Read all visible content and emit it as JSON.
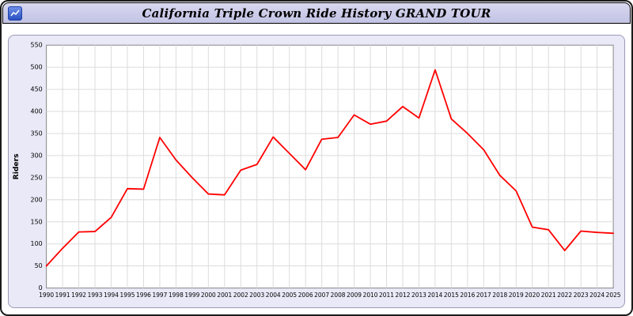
{
  "window": {
    "title": "California Triple Crown Ride History GRAND TOUR",
    "icon": "chart-icon"
  },
  "colors": {
    "titlebar_bg": "#ccccec",
    "panel_bg": "#e9e9f7",
    "plot_bg": "#ffffff",
    "grid": "#dcdcdc",
    "axis_border": "#888888",
    "line": "#ff0000",
    "text": "#000000"
  },
  "chart_data": {
    "type": "line",
    "title": "California Triple Crown Ride History GRAND TOUR",
    "xlabel": "",
    "ylabel": "Riders",
    "ylim": [
      0,
      550
    ],
    "ytick_step": 50,
    "grid": true,
    "legend": "none",
    "line_color": "#ff0000",
    "years": [
      1990,
      1991,
      1992,
      1993,
      1994,
      1995,
      1996,
      1997,
      1998,
      1999,
      2000,
      2001,
      2002,
      2003,
      2004,
      2005,
      2006,
      2007,
      2008,
      2009,
      2010,
      2011,
      2012,
      2013,
      2014,
      2015,
      2016,
      2017,
      2018,
      2019,
      2020,
      2021,
      2022,
      2023,
      2024,
      2025
    ],
    "values": [
      50,
      90,
      127,
      128,
      160,
      225,
      224,
      341,
      290,
      250,
      213,
      211,
      267,
      280,
      342,
      305,
      268,
      337,
      341,
      392,
      371,
      378,
      411,
      385,
      494,
      383,
      350,
      313,
      255,
      220,
      138,
      132,
      85,
      129,
      126,
      124
    ]
  }
}
